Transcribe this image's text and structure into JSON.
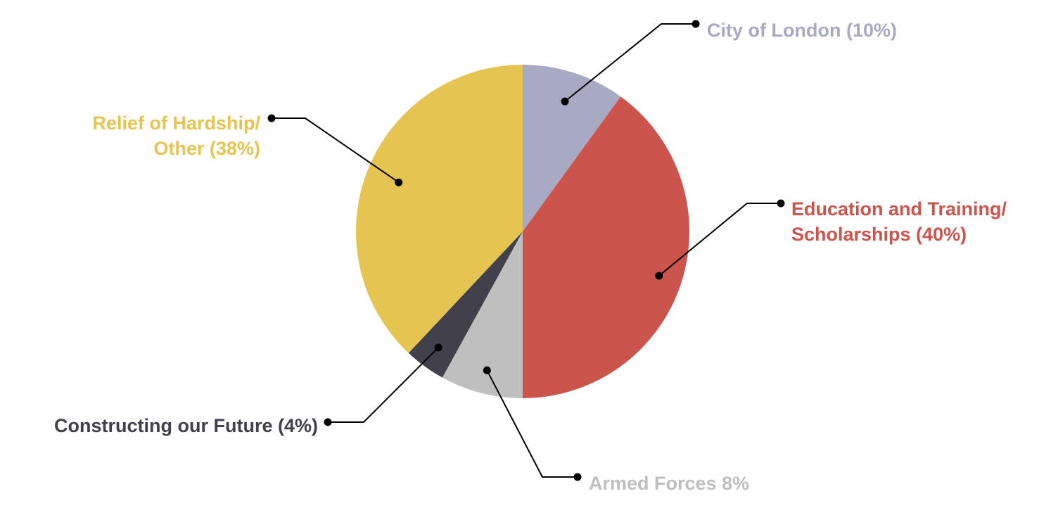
{
  "chart_data": {
    "type": "pie",
    "title": "",
    "slices": [
      {
        "label_lines": [
          "City of London (10%)"
        ],
        "value": 10,
        "color": "#a8a9c2"
      },
      {
        "label_lines": [
          "Education and Training/",
          "Scholarships (40%)"
        ],
        "value": 40,
        "color": "#cb554d"
      },
      {
        "label_lines": [
          "Armed Forces 8%"
        ],
        "value": 8,
        "color": "#bfbfbf"
      },
      {
        "label_lines": [
          "Constructing our Future (4%)"
        ],
        "value": 4,
        "color": "#41404b"
      },
      {
        "label_lines": [
          "Relief of Hardship/",
          "Other (38%)"
        ],
        "value": 38,
        "color": "#e6c452"
      }
    ],
    "start_angle": "12 o'clock",
    "direction": "clockwise",
    "legend": "none",
    "label_style": "external labels with leader lines"
  }
}
